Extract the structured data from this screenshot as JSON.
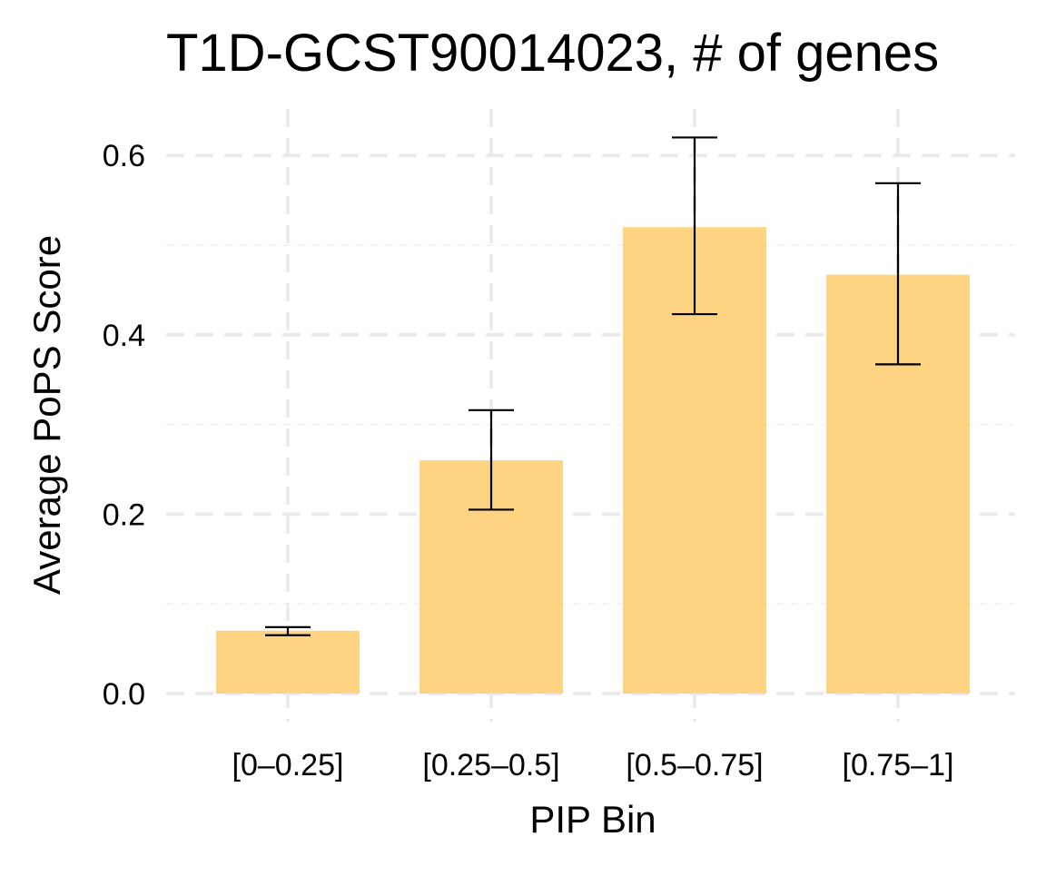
{
  "chart_data": {
    "type": "bar",
    "title": "T1D-GCST90014023, # of genes",
    "xlabel": "PIP Bin",
    "ylabel": "Average PoPS Score",
    "categories": [
      "[0–0.25]",
      "[0.25–0.5]",
      "[0.5–0.75]",
      "[0.75–1]"
    ],
    "values": [
      0.07,
      0.26,
      0.52,
      0.467
    ],
    "error_low": [
      0.065,
      0.205,
      0.423,
      0.367
    ],
    "error_high": [
      0.074,
      0.316,
      0.62,
      0.569
    ],
    "ylim": [
      0,
      0.63
    ],
    "y_ticks": [
      0.0,
      0.2,
      0.4,
      0.6
    ],
    "y_tick_labels": [
      "0.0",
      "0.2",
      "0.4",
      "0.6"
    ],
    "y_minor_ticks": [
      0.1,
      0.3,
      0.5
    ],
    "grid": true,
    "legend": "none",
    "colors": {
      "bar": "#FED381",
      "error_bar": "#000000",
      "grid": "#EBEBEB",
      "background": "#FFFFFF"
    }
  }
}
